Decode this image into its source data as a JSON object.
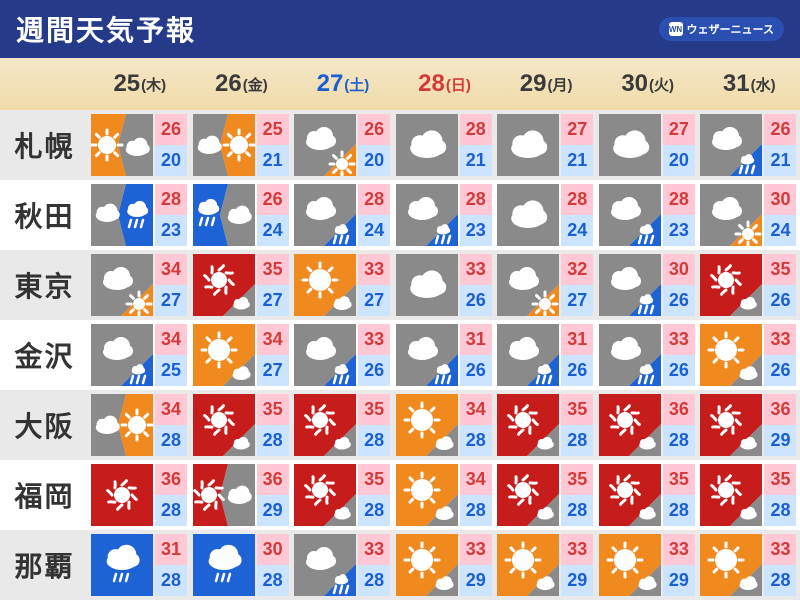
{
  "title": "週間天気予報",
  "brand": "ウェザーニュース",
  "colors": {
    "headerBg": "#253b8a",
    "dateBgTop": "#f4e6c8",
    "dateBgBot": "#f0dba8",
    "rowOdd": "#e9e9e9",
    "rowEven": "#ffffff",
    "hiBg": "#ffc8d4",
    "hiFg": "#d43a3a",
    "loBg": "#cde4ff",
    "loFg": "#1a5fd4",
    "orange": "#f08a1e",
    "gray": "#8a8a8a",
    "blue": "#1d63d6",
    "red": "#c71c1c",
    "white": "#ffffff"
  },
  "dates": [
    {
      "d": "25",
      "w": "(木)",
      "cls": "c-black"
    },
    {
      "d": "26",
      "w": "(金)",
      "cls": "c-black"
    },
    {
      "d": "27",
      "w": "(土)",
      "cls": "c-blue"
    },
    {
      "d": "28",
      "w": "(日)",
      "cls": "c-red"
    },
    {
      "d": "29",
      "w": "(月)",
      "cls": "c-black"
    },
    {
      "d": "30",
      "w": "(火)",
      "cls": "c-black"
    },
    {
      "d": "31",
      "w": "(水)",
      "cls": "c-black"
    }
  ],
  "cities": [
    {
      "name": "札幌",
      "f": [
        {
          "icon": "sun_then_cloud",
          "hi": 26,
          "lo": 20
        },
        {
          "icon": "cloud_then_sun",
          "hi": 25,
          "lo": 21
        },
        {
          "icon": "cloud_occ_sun",
          "hi": 26,
          "lo": 20
        },
        {
          "icon": "cloud",
          "hi": 28,
          "lo": 21
        },
        {
          "icon": "cloud",
          "hi": 27,
          "lo": 21
        },
        {
          "icon": "cloud",
          "hi": 27,
          "lo": 20
        },
        {
          "icon": "cloud_occ_rain",
          "hi": 26,
          "lo": 21
        }
      ]
    },
    {
      "name": "秋田",
      "f": [
        {
          "icon": "cloud_then_rain",
          "hi": 28,
          "lo": 23
        },
        {
          "icon": "rain_then_cloud",
          "hi": 26,
          "lo": 24
        },
        {
          "icon": "cloud_occ_rain",
          "hi": 28,
          "lo": 24
        },
        {
          "icon": "cloud_occ_rain",
          "hi": 28,
          "lo": 23
        },
        {
          "icon": "cloud",
          "hi": 28,
          "lo": 24
        },
        {
          "icon": "cloud_occ_rain",
          "hi": 28,
          "lo": 23
        },
        {
          "icon": "cloud_occ_sun",
          "hi": 30,
          "lo": 24
        }
      ]
    },
    {
      "name": "東京",
      "f": [
        {
          "icon": "cloud_occ_sun",
          "hi": 34,
          "lo": 27
        },
        {
          "icon": "hot_occ_cloud",
          "hi": 35,
          "lo": 27
        },
        {
          "icon": "sun_occ_cloud",
          "hi": 33,
          "lo": 27
        },
        {
          "icon": "cloud",
          "hi": 33,
          "lo": 26
        },
        {
          "icon": "cloud_occ_sun",
          "hi": 32,
          "lo": 27
        },
        {
          "icon": "cloud_occ_rain",
          "hi": 30,
          "lo": 26
        },
        {
          "icon": "hot_occ_cloud",
          "hi": 35,
          "lo": 26
        }
      ]
    },
    {
      "name": "金沢",
      "f": [
        {
          "icon": "cloud_occ_rain",
          "hi": 34,
          "lo": 25
        },
        {
          "icon": "sun_occ_cloud",
          "hi": 34,
          "lo": 27
        },
        {
          "icon": "cloud_occ_rain",
          "hi": 33,
          "lo": 26
        },
        {
          "icon": "cloud_occ_rain",
          "hi": 31,
          "lo": 26
        },
        {
          "icon": "cloud_occ_rain",
          "hi": 31,
          "lo": 26
        },
        {
          "icon": "cloud_occ_rain",
          "hi": 33,
          "lo": 26
        },
        {
          "icon": "sun_occ_cloud",
          "hi": 33,
          "lo": 26
        }
      ]
    },
    {
      "name": "大阪",
      "f": [
        {
          "icon": "cloud_then_sun",
          "hi": 34,
          "lo": 28
        },
        {
          "icon": "hot_occ_cloud",
          "hi": 35,
          "lo": 28
        },
        {
          "icon": "hot_occ_cloud",
          "hi": 35,
          "lo": 28
        },
        {
          "icon": "sun_occ_cloud",
          "hi": 34,
          "lo": 28
        },
        {
          "icon": "hot_occ_cloud",
          "hi": 35,
          "lo": 28
        },
        {
          "icon": "hot_occ_cloud",
          "hi": 36,
          "lo": 28
        },
        {
          "icon": "hot_occ_cloud",
          "hi": 36,
          "lo": 29
        }
      ]
    },
    {
      "name": "福岡",
      "f": [
        {
          "icon": "hot",
          "hi": 36,
          "lo": 28
        },
        {
          "icon": "hot_then_cloud",
          "hi": 36,
          "lo": 29
        },
        {
          "icon": "hot_occ_cloud",
          "hi": 35,
          "lo": 28
        },
        {
          "icon": "sun_occ_cloud",
          "hi": 34,
          "lo": 28
        },
        {
          "icon": "hot_occ_cloud",
          "hi": 35,
          "lo": 28
        },
        {
          "icon": "hot_occ_cloud",
          "hi": 35,
          "lo": 28
        },
        {
          "icon": "hot_occ_cloud",
          "hi": 35,
          "lo": 28
        }
      ]
    },
    {
      "name": "那覇",
      "f": [
        {
          "icon": "rain",
          "hi": 31,
          "lo": 28
        },
        {
          "icon": "rain",
          "hi": 30,
          "lo": 28
        },
        {
          "icon": "cloud_occ_rain",
          "hi": 33,
          "lo": 28
        },
        {
          "icon": "sun_occ_cloud",
          "hi": 33,
          "lo": 29
        },
        {
          "icon": "sun_occ_cloud",
          "hi": 33,
          "lo": 29
        },
        {
          "icon": "sun_occ_cloud",
          "hi": 33,
          "lo": 29
        },
        {
          "icon": "sun_occ_cloud",
          "hi": 33,
          "lo": 28
        }
      ]
    }
  ]
}
